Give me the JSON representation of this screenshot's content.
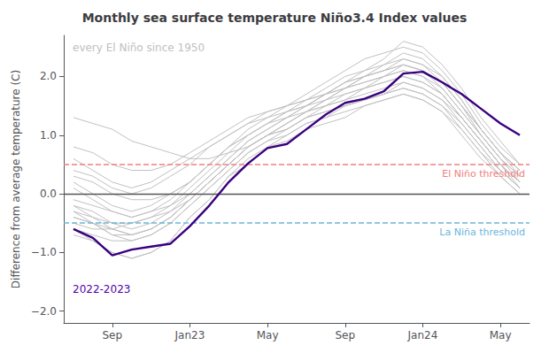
{
  "chart_data": {
    "type": "line",
    "title": "Monthly sea surface temperature Niño3.4 Index values",
    "ylabel": "Difference from average temperature (C)",
    "categories": [
      null,
      null,
      "Sep",
      null,
      null,
      null,
      "Jan23",
      null,
      null,
      null,
      "May",
      null,
      null,
      null,
      "Sep",
      null,
      null,
      null,
      "Jan24",
      null,
      null,
      null,
      "May",
      null
    ],
    "ylim": [
      -2.2,
      2.7
    ],
    "yticks": [
      {
        "value": -2,
        "label": "−2.0"
      },
      {
        "value": -1,
        "label": "−1.0"
      },
      {
        "value": 0,
        "label": "0.0"
      },
      {
        "value": 1,
        "label": "1.0"
      },
      {
        "value": 2,
        "label": "2.0"
      }
    ],
    "grid": false,
    "series": [
      {
        "color": "#c0c0c0",
        "values": [
          1.3,
          1.2,
          1.1,
          0.9,
          0.8,
          0.7,
          0.6,
          0.6,
          0.7,
          0.8,
          1.0,
          1.2,
          1.4,
          1.6,
          1.8,
          2.0,
          2.1,
          2.2,
          2.1,
          1.9,
          1.5,
          1.1,
          0.7,
          0.4
        ]
      },
      {
        "color": "#c0c0c0",
        "values": [
          0.3,
          0.2,
          0.0,
          -0.1,
          -0.1,
          0.0,
          0.2,
          0.5,
          0.8,
          1.1,
          1.3,
          1.5,
          1.7,
          1.9,
          2.1,
          2.3,
          2.4,
          2.5,
          2.4,
          2.1,
          1.7,
          1.2,
          0.8,
          0.5
        ]
      },
      {
        "color": "#c0c0c0",
        "values": [
          -0.1,
          -0.2,
          -0.3,
          -0.4,
          -0.3,
          -0.2,
          0.0,
          0.3,
          0.6,
          0.9,
          1.1,
          1.3,
          1.5,
          1.7,
          1.9,
          2.1,
          2.3,
          2.6,
          2.5,
          2.2,
          1.8,
          1.3,
          0.9,
          0.5
        ]
      },
      {
        "color": "#c0c0c0",
        "values": [
          -0.3,
          -0.4,
          -0.5,
          -0.5,
          -0.4,
          -0.3,
          -0.1,
          0.2,
          0.5,
          0.8,
          1.0,
          1.2,
          1.4,
          1.6,
          1.8,
          2.0,
          2.2,
          2.4,
          2.3,
          2.0,
          1.6,
          1.1,
          0.7,
          0.4
        ]
      },
      {
        "color": "#c0c0c0",
        "values": [
          -0.5,
          -0.6,
          -0.6,
          -0.5,
          -0.4,
          -0.2,
          0.1,
          0.4,
          0.7,
          1.0,
          1.2,
          1.4,
          1.6,
          1.8,
          2.0,
          2.1,
          2.2,
          2.3,
          2.2,
          1.9,
          1.5,
          1.0,
          0.6,
          0.2
        ]
      },
      {
        "color": "#c0c0c0",
        "values": [
          -0.2,
          -0.3,
          -0.5,
          -0.6,
          -0.5,
          -0.3,
          0.0,
          0.3,
          0.6,
          0.9,
          1.1,
          1.3,
          1.5,
          1.7,
          1.9,
          2.0,
          2.1,
          2.2,
          2.1,
          1.8,
          1.4,
          1.0,
          0.6,
          0.3
        ]
      },
      {
        "color": "#c0c0c0",
        "values": [
          0.1,
          -0.1,
          -0.3,
          -0.4,
          -0.3,
          -0.1,
          0.2,
          0.5,
          0.8,
          1.0,
          1.2,
          1.4,
          1.5,
          1.7,
          1.9,
          2.0,
          2.1,
          2.3,
          2.2,
          2.0,
          1.6,
          1.1,
          0.7,
          0.3
        ]
      },
      {
        "color": "#c0c0c0",
        "values": [
          -0.4,
          -0.5,
          -0.7,
          -0.7,
          -0.6,
          -0.4,
          -0.1,
          0.2,
          0.5,
          0.8,
          1.0,
          1.2,
          1.4,
          1.5,
          1.7,
          1.8,
          2.0,
          2.1,
          2.0,
          1.7,
          1.3,
          0.9,
          0.5,
          0.2
        ]
      },
      {
        "color": "#c0c0c0",
        "values": [
          -0.6,
          -0.7,
          -0.8,
          -0.8,
          -0.7,
          -0.5,
          -0.2,
          0.1,
          0.4,
          0.7,
          0.9,
          1.1,
          1.3,
          1.5,
          1.6,
          1.8,
          1.9,
          2.0,
          1.9,
          1.7,
          1.3,
          0.9,
          0.5,
          0.1
        ]
      },
      {
        "color": "#c0c0c0",
        "values": [
          0.4,
          0.3,
          0.1,
          0.0,
          0.1,
          0.3,
          0.5,
          0.8,
          1.0,
          1.2,
          1.4,
          1.5,
          1.6,
          1.7,
          1.8,
          1.9,
          2.0,
          2.1,
          2.0,
          1.8,
          1.4,
          1.0,
          0.6,
          0.3
        ]
      },
      {
        "color": "#c0c0c0",
        "values": [
          0.8,
          0.7,
          0.5,
          0.4,
          0.4,
          0.5,
          0.7,
          0.9,
          1.1,
          1.3,
          1.4,
          1.5,
          1.6,
          1.7,
          1.8,
          1.9,
          2.0,
          2.2,
          2.1,
          1.9,
          1.5,
          1.1,
          0.7,
          0.4
        ]
      },
      {
        "color": "#c0c0c0",
        "values": [
          -0.3,
          -0.5,
          -0.6,
          -0.7,
          -0.6,
          -0.4,
          -0.1,
          0.2,
          0.5,
          0.8,
          1.0,
          1.1,
          1.3,
          1.4,
          1.5,
          1.6,
          1.7,
          1.9,
          1.8,
          1.6,
          1.2,
          0.8,
          0.4,
          0.1
        ]
      },
      {
        "color": "#c0c0c0",
        "values": [
          -0.6,
          -0.8,
          -1.0,
          -1.1,
          -1.0,
          -0.8,
          -0.4,
          -0.1,
          0.3,
          0.6,
          0.8,
          1.0,
          1.2,
          1.3,
          1.5,
          1.6,
          1.7,
          1.8,
          1.7,
          1.5,
          1.1,
          0.7,
          0.3,
          0.0
        ]
      },
      {
        "color": "#c0c0c0",
        "values": [
          -0.4,
          -0.5,
          -0.7,
          -0.8,
          -0.7,
          -0.5,
          -0.2,
          0.1,
          0.4,
          0.7,
          0.9,
          1.0,
          1.2,
          1.3,
          1.4,
          1.5,
          1.6,
          1.7,
          1.6,
          1.4,
          1.1,
          0.7,
          0.4,
          0.1
        ]
      },
      {
        "color": "#c0c0c0",
        "values": [
          0.2,
          0.0,
          -0.2,
          -0.3,
          -0.2,
          0.0,
          0.2,
          0.5,
          0.8,
          1.0,
          1.2,
          1.3,
          1.4,
          1.5,
          1.6,
          1.7,
          1.8,
          1.9,
          1.8,
          1.6,
          1.3,
          0.9,
          0.5,
          0.2
        ]
      },
      {
        "color": "#c0c0c0",
        "values": [
          -0.7,
          -0.8,
          -1.0,
          -1.1,
          -1.0,
          -0.8,
          -0.4,
          -0.1,
          0.3,
          0.5,
          0.8,
          0.9,
          1.1,
          1.2,
          1.3,
          1.5,
          1.6,
          1.7,
          1.6,
          1.4,
          1.0,
          0.6,
          0.3,
          0.0
        ]
      },
      {
        "color": "#c0c0c0",
        "values": [
          0.6,
          0.4,
          0.2,
          0.1,
          0.2,
          0.4,
          0.6,
          0.8,
          1.0,
          1.2,
          1.3,
          1.4,
          1.5,
          1.6,
          1.7,
          1.8,
          1.9,
          2.0,
          1.9,
          1.7,
          1.3,
          0.9,
          0.5,
          0.2
        ]
      },
      {
        "color": "#c0c0c0",
        "values": [
          -0.2,
          -0.4,
          -0.6,
          -0.7,
          -0.6,
          -0.4,
          -0.1,
          0.2,
          0.5,
          0.8,
          1.0,
          1.1,
          1.3,
          1.4,
          1.5,
          1.6,
          1.7,
          1.8,
          1.7,
          1.5,
          1.2,
          0.8,
          0.4,
          0.1
        ]
      },
      {
        "color": "#3a0080",
        "values": [
          -0.6,
          -0.75,
          -1.05,
          -0.95,
          -0.9,
          -0.85,
          -0.55,
          -0.2,
          0.2,
          0.52,
          0.78,
          0.85,
          1.1,
          1.35,
          1.55,
          1.62,
          1.75,
          2.05,
          2.08,
          1.9,
          1.7,
          1.45,
          1.2,
          1.0
        ]
      }
    ],
    "reference_lines": [
      {
        "y": 0,
        "color": "#555555"
      },
      {
        "y": 0.5,
        "color": "#f08080",
        "line_style": "dashed",
        "label": "El Niño threshold"
      },
      {
        "y": -0.5,
        "color": "#6bb5e0",
        "line_style": "dashed",
        "label": "La Niña threshold"
      }
    ],
    "annotations": [
      {
        "text": "every El Niño since 1950",
        "color": "#c0c0c0"
      },
      {
        "text": "2022-2023",
        "color": "#5500aa"
      }
    ]
  }
}
